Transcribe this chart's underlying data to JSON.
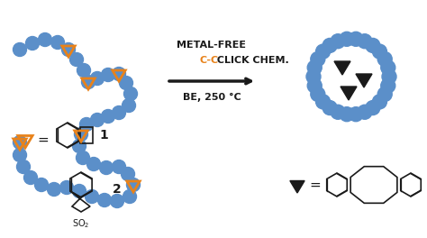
{
  "bg_color": "#ffffff",
  "blue_circle_color": "#5b8fc9",
  "orange_color": "#e8821a",
  "black_color": "#1a1a1a",
  "arrow_text_line1": "METAL-FREE",
  "arrow_text_line2": "C-C CLICK CHEM.",
  "arrow_text_line3": "BE, 250 °C",
  "label1": "1",
  "label2": "2",
  "fig_width": 4.74,
  "fig_height": 2.64,
  "dpi": 100
}
